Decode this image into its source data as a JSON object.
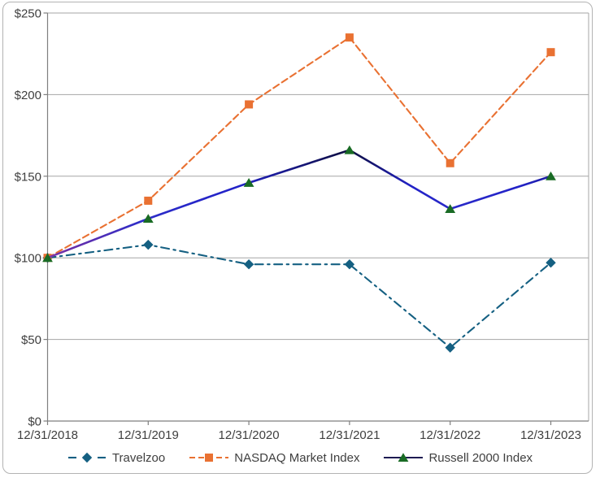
{
  "chart_data": {
    "type": "line",
    "title": "",
    "xlabel": "",
    "ylabel": "",
    "categories": [
      "12/31/2018",
      "12/31/2019",
      "12/31/2020",
      "12/31/2021",
      "12/31/2022",
      "12/31/2023"
    ],
    "series": [
      {
        "name": "Travelzoo",
        "values": [
          100,
          108,
          96,
          96,
          45,
          97
        ],
        "color": "#156082",
        "marker": "diamond",
        "line_style": "long-dash-dot"
      },
      {
        "name": "NASDAQ Market Index",
        "values": [
          100,
          135,
          194,
          235,
          158,
          226
        ],
        "color": "#E97132",
        "marker": "square",
        "line_style": "dash"
      },
      {
        "name": "Russell 2000 Index",
        "values": [
          100,
          124,
          146,
          166,
          130,
          150
        ],
        "color": "#196B24",
        "marker": "triangle",
        "line_style": "solid",
        "line_gradient": [
          "#08081F",
          "#2222C8",
          "#2D2DC8",
          "#6B2EA8",
          "#8238AC"
        ],
        "legend_line_color": "#1E1B52"
      }
    ],
    "ylim": [
      0,
      250
    ],
    "y_ticks": [
      "$0",
      "$50",
      "$100",
      "$150",
      "$200",
      "$250"
    ],
    "y_tick_values": [
      0,
      50,
      100,
      150,
      200,
      250
    ],
    "grid": true,
    "legend_position": "bottom",
    "grid_color": "#A6A6A6",
    "axis_color": "#7F7F7F",
    "axis_text_color": "#3F3F3F"
  }
}
